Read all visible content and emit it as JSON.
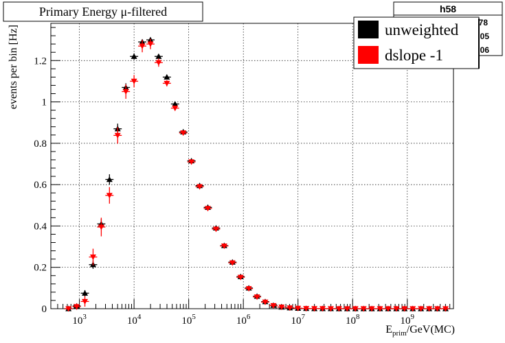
{
  "chart_data": {
    "type": "scatter",
    "title": "Primary Energy μ-filtered",
    "stats_box_title": "h58",
    "stats_box_fragments": [
      "78",
      "05",
      "06"
    ],
    "xlabel_main": "E",
    "xlabel_sub": "prim",
    "xlabel_rest": "/GeV(MC)",
    "ylabel": "events per bin [Hz]",
    "x_scale": "log",
    "xlim": [
      300,
      7000000000
    ],
    "ylim": [
      0,
      1.38
    ],
    "grid": true,
    "legend_position": "top-right",
    "x_tick_labels": [
      {
        "base": "10",
        "exp": "3",
        "value": 1000
      },
      {
        "base": "10",
        "exp": "4",
        "value": 10000
      },
      {
        "base": "10",
        "exp": "5",
        "value": 100000
      },
      {
        "base": "10",
        "exp": "6",
        "value": 1000000
      },
      {
        "base": "10",
        "exp": "7",
        "value": 10000000
      },
      {
        "base": "10",
        "exp": "8",
        "value": 100000000
      },
      {
        "base": "10",
        "exp": "9",
        "value": 1000000000
      }
    ],
    "y_ticks": [
      {
        "value": 0,
        "label": "0"
      },
      {
        "value": 0.2,
        "label": "0.2"
      },
      {
        "value": 0.4,
        "label": "0.4"
      },
      {
        "value": 0.6,
        "label": "0.6"
      },
      {
        "value": 0.8,
        "label": "0.8"
      },
      {
        "value": 1,
        "label": "1"
      },
      {
        "value": 1.2,
        "label": "1.2"
      }
    ],
    "bin_centers": [
      631,
      891,
      1259,
      1778,
      2512,
      3548,
      5012,
      7079,
      10000,
      14125,
      19953,
      28184,
      39811,
      56234,
      79433,
      112202,
      158489,
      223872,
      316228,
      446684,
      630957,
      891251,
      1258925,
      1778279,
      2511886,
      3548134,
      5011872,
      7079458,
      10000000,
      14125375,
      19952623,
      28183829,
      39810717,
      56234133,
      79432823,
      112201845,
      158489319,
      223872114,
      316227766,
      446683592,
      630957344,
      891250938,
      1258925412,
      1778279410,
      2511886432,
      3548133892,
      5011872336
    ],
    "series": [
      {
        "name": "unweighted",
        "color": "#000000",
        "marker": "triangle-up",
        "values": [
          0.0,
          0.013,
          0.075,
          0.213,
          0.41,
          0.625,
          0.87,
          1.07,
          1.22,
          1.29,
          1.3,
          1.22,
          1.12,
          0.99,
          0.855,
          0.715,
          0.595,
          0.49,
          0.39,
          0.305,
          0.225,
          0.155,
          0.1,
          0.06,
          0.034,
          0.016,
          0.008,
          0.004,
          0.002,
          0.001,
          0.0005,
          0.0003,
          0.0002,
          0.0001,
          0.0001,
          0.0,
          0.0,
          0.0,
          0.0,
          0.0,
          0.0,
          0.0,
          0.0,
          0.0,
          0.0,
          0.0,
          0.0
        ],
        "errors": [
          0.003,
          0.008,
          0.015,
          0.02,
          0.025,
          0.025,
          0.025,
          0.02,
          0.015,
          0.012,
          0.012,
          0.01,
          0.008,
          0.008,
          0.006,
          0.005,
          0.004,
          0.004,
          0.003,
          0.003,
          0.003,
          0.002,
          0.002,
          0.002,
          0.001,
          0.001,
          0.001,
          0.001,
          0.0,
          0.0,
          0.0,
          0.0,
          0.0,
          0.0,
          0.0,
          0.0,
          0.0,
          0.0,
          0.0,
          0.0,
          0.0,
          0.0,
          0.0,
          0.0,
          0.0,
          0.0,
          0.0
        ]
      },
      {
        "name": "dslope -1",
        "color": "#ff0000",
        "marker": "triangle-down",
        "values": [
          0.0,
          0.01,
          0.035,
          0.25,
          0.395,
          0.548,
          0.838,
          1.05,
          1.1,
          1.27,
          1.28,
          1.19,
          1.09,
          0.97,
          0.85,
          0.71,
          0.59,
          0.485,
          0.385,
          0.303,
          0.222,
          0.152,
          0.097,
          0.057,
          0.032,
          0.015,
          0.008,
          0.004,
          0.002,
          0.001,
          0.0005,
          0.0003,
          0.0002,
          0.0001,
          0.0001,
          0.0,
          0.0,
          0.0,
          0.0,
          0.0,
          0.0,
          0.0,
          0.0,
          0.0,
          0.0,
          0.0,
          0.0
        ],
        "errors": [
          0.002,
          0.015,
          0.025,
          0.04,
          0.045,
          0.04,
          0.04,
          0.035,
          0.03,
          0.03,
          0.025,
          0.02,
          0.015,
          0.012,
          0.01,
          0.008,
          0.007,
          0.006,
          0.005,
          0.005,
          0.004,
          0.004,
          0.003,
          0.003,
          0.002,
          0.002,
          0.002,
          0.001,
          0.001,
          0.001,
          0.0,
          0.0,
          0.0,
          0.0,
          0.0,
          0.0,
          0.0,
          0.0,
          0.0,
          0.0,
          0.0,
          0.0,
          0.0,
          0.0,
          0.0,
          0.0,
          0.0
        ]
      }
    ]
  }
}
